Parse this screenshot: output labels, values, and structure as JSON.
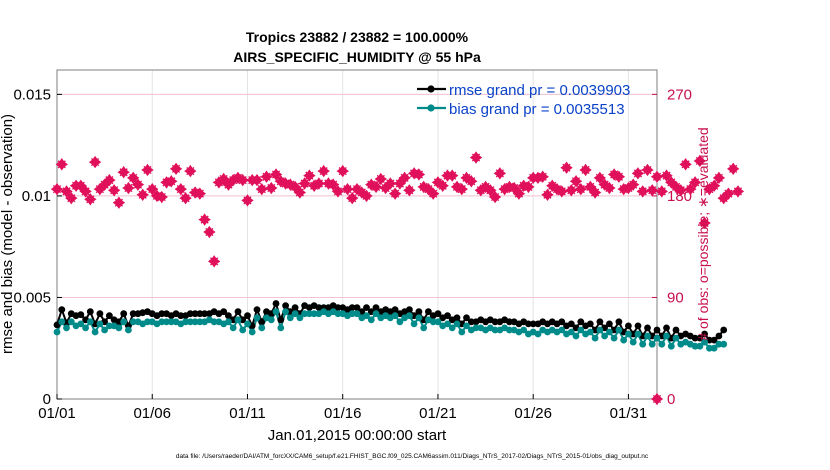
{
  "chart_data": {
    "type": "line",
    "title": "Tropics 23882 / 23882 = 100.000%",
    "subtitle": "AIRS_SPECIFIC_HUMIDITY @ 55 hPa",
    "xlabel": "Jan.01,2015 00:00:00 start",
    "ylabel_left": "rmse and bias (model - observation)",
    "ylabel_right": "# of obs: o=possible; ∗=evaluated",
    "footer": "data file: /Users/raeder/DAI/ATM_forcXX/CAM6_setup/f.e21.FHIST_BGC.f09_025.CAM6assim.011/Diags_NTrS_2017-02/Diags_NTrS_2015-01/obs_diag_output.nc",
    "xlim": [
      0,
      31.5
    ],
    "ylim_left": [
      0,
      0.0162
    ],
    "ylim_right": [
      0,
      291.6
    ],
    "x_ticks": [
      0,
      5,
      10,
      15,
      20,
      25,
      30
    ],
    "x_tick_labels": [
      "01/01",
      "01/06",
      "01/11",
      "01/16",
      "01/21",
      "01/26",
      "01/31"
    ],
    "y_left_ticks": [
      0,
      0.005,
      0.01,
      0.015
    ],
    "y_left_tick_labels": [
      "0",
      "0.005",
      "0.01",
      "0.015"
    ],
    "y_right_ticks": [
      0,
      90,
      180,
      270
    ],
    "y_right_tick_labels": [
      "0",
      "90",
      "180",
      "270"
    ],
    "legend": [
      {
        "label": "rmse grand pr = 0.0039903",
        "color": "#000000"
      },
      {
        "label": "bias grand pr = 0.0035513",
        "color": "#008b8b"
      }
    ],
    "colors": {
      "rmse": "#000000",
      "bias": "#008b8b",
      "obs": "#e0105a",
      "legend_text": "#0a42c8",
      "right_axis": "#c8104f"
    },
    "series": [
      {
        "name": "rmse",
        "axis": "left",
        "x_start": 0.0,
        "x_step": 0.25,
        "values": [
          0.00365,
          0.0044,
          0.00375,
          0.0042,
          0.0041,
          0.00415,
          0.0039,
          0.0043,
          0.0037,
          0.0042,
          0.0038,
          0.0041,
          0.0039,
          0.0038,
          0.0042,
          0.0036,
          0.0042,
          0.0042,
          0.00425,
          0.0043,
          0.0042,
          0.0041,
          0.0042,
          0.0042,
          0.0041,
          0.0042,
          0.0041,
          0.0041,
          0.0042,
          0.0042,
          0.0042,
          0.0042,
          0.0042,
          0.0043,
          0.0042,
          0.0043,
          0.0041,
          0.0039,
          0.0043,
          0.0039,
          0.0041,
          0.0036,
          0.0044,
          0.0038,
          0.0043,
          0.0042,
          0.0047,
          0.0039,
          0.0046,
          0.0043,
          0.0045,
          0.0042,
          0.0046,
          0.0045,
          0.0046,
          0.0045,
          0.0045,
          0.0045,
          0.0046,
          0.0045,
          0.0045,
          0.0044,
          0.0045,
          0.0045,
          0.0043,
          0.0045,
          0.0043,
          0.0045,
          0.0043,
          0.0044,
          0.0043,
          0.0044,
          0.0042,
          0.0043,
          0.0044,
          0.0041,
          0.0043,
          0.0039,
          0.0043,
          0.0041,
          0.0042,
          0.004,
          0.0041,
          0.0039,
          0.004,
          0.0037,
          0.004,
          0.0038,
          0.0038,
          0.0039,
          0.0038,
          0.0039,
          0.0038,
          0.0038,
          0.0039,
          0.0038,
          0.0038,
          0.0037,
          0.0038,
          0.0037,
          0.0037,
          0.0037,
          0.0038,
          0.0037,
          0.0038,
          0.0037,
          0.0038,
          0.0036,
          0.0037,
          0.0035,
          0.0038,
          0.0036,
          0.0037,
          0.0034,
          0.0038,
          0.0035,
          0.0037,
          0.0034,
          0.0038,
          0.0033,
          0.0036,
          0.0032,
          0.0036,
          0.0031,
          0.0035,
          0.0031,
          0.0034,
          0.0031,
          0.0035,
          0.003,
          0.0034,
          0.0031,
          0.0032,
          0.0031,
          0.003,
          0.003,
          0.0032,
          0.0029,
          0.0029,
          0.0031,
          0.0034
        ]
      },
      {
        "name": "bias",
        "axis": "left",
        "x_start": 0.0,
        "x_step": 0.25,
        "values": [
          0.0033,
          0.0038,
          0.0035,
          0.0038,
          0.0036,
          0.0037,
          0.0035,
          0.0038,
          0.0033,
          0.0037,
          0.0034,
          0.0036,
          0.0036,
          0.0035,
          0.0038,
          0.0034,
          0.0038,
          0.0038,
          0.0037,
          0.0038,
          0.0038,
          0.0037,
          0.0038,
          0.0038,
          0.0038,
          0.0038,
          0.0037,
          0.0038,
          0.0038,
          0.0038,
          0.0038,
          0.0038,
          0.0039,
          0.0038,
          0.0038,
          0.0037,
          0.0038,
          0.0035,
          0.0039,
          0.0034,
          0.0037,
          0.0033,
          0.004,
          0.0035,
          0.004,
          0.0039,
          0.0043,
          0.0035,
          0.0043,
          0.004,
          0.0042,
          0.004,
          0.0042,
          0.0042,
          0.0042,
          0.0042,
          0.0043,
          0.0042,
          0.0043,
          0.0042,
          0.0042,
          0.0041,
          0.0042,
          0.0042,
          0.004,
          0.0041,
          0.0039,
          0.0042,
          0.004,
          0.0041,
          0.004,
          0.0041,
          0.0038,
          0.004,
          0.0041,
          0.0037,
          0.004,
          0.0035,
          0.0039,
          0.0038,
          0.0038,
          0.0036,
          0.0037,
          0.0035,
          0.0037,
          0.0033,
          0.0036,
          0.0034,
          0.0035,
          0.0035,
          0.0034,
          0.0035,
          0.0034,
          0.0034,
          0.0035,
          0.0034,
          0.0034,
          0.0033,
          0.0034,
          0.0032,
          0.0033,
          0.0032,
          0.0034,
          0.0033,
          0.0034,
          0.0033,
          0.0034,
          0.0032,
          0.0033,
          0.0031,
          0.0034,
          0.0032,
          0.0033,
          0.003,
          0.0034,
          0.0031,
          0.0033,
          0.003,
          0.0034,
          0.0029,
          0.0032,
          0.0028,
          0.0032,
          0.0027,
          0.0031,
          0.0027,
          0.003,
          0.0027,
          0.0031,
          0.0026,
          0.003,
          0.0027,
          0.0028,
          0.0027,
          0.0026,
          0.0026,
          0.0028,
          0.0025,
          0.0025,
          0.0027,
          0.0027
        ]
      },
      {
        "name": "obs",
        "axis": "right",
        "marker": "star",
        "x_start": 0.0,
        "x_step": 0.25,
        "values": [
          186,
          208,
          184,
          178,
          189,
          189,
          184,
          177,
          210,
          186,
          190,
          194,
          185,
          174,
          201,
          187,
          196,
          190,
          181,
          203,
          186,
          180,
          179,
          192,
          193,
          204,
          186,
          178,
          202,
          183,
          182,
          159,
          148,
          122,
          192,
          195,
          190,
          194,
          196,
          194,
          176,
          194,
          194,
          186,
          197,
          187,
          199,
          193,
          191,
          190,
          188,
          183,
          191,
          198,
          189,
          191,
          202,
          191,
          190,
          184,
          202,
          186,
          178,
          186,
          183,
          180,
          190,
          188,
          195,
          187,
          191,
          182,
          191,
          196,
          185,
          200,
          199,
          188,
          186,
          182,
          192,
          189,
          198,
          198,
          188,
          186,
          196,
          193,
          214,
          185,
          188,
          185,
          179,
          200,
          186,
          188,
          187,
          182,
          189,
          188,
          196,
          196,
          197,
          181,
          189,
          186,
          184,
          205,
          185,
          193,
          186,
          203,
          188,
          183,
          196,
          190,
          187,
          199,
          197,
          186,
          187,
          190,
          200,
          184,
          203,
          185,
          197,
          184,
          198,
          192,
          188,
          185,
          208,
          186,
          192,
          211,
          156,
          186,
          189,
          196,
          178,
          182,
          204,
          184
        ]
      }
    ]
  }
}
